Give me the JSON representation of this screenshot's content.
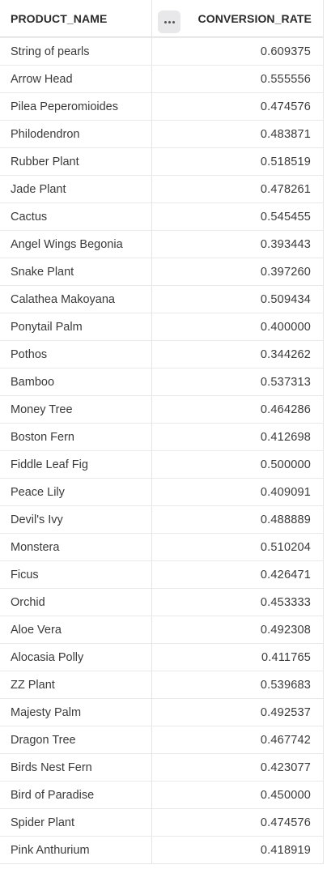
{
  "table": {
    "columns": {
      "product_name": "PRODUCT_NAME",
      "conversion_rate": "CONVERSION_RATE"
    },
    "column_menu_icon": "more-horizontal-icon",
    "rows": [
      {
        "product_name": "String of pearls",
        "conversion_rate": "0.609375"
      },
      {
        "product_name": "Arrow Head",
        "conversion_rate": "0.555556"
      },
      {
        "product_name": "Pilea Peperomioides",
        "conversion_rate": "0.474576"
      },
      {
        "product_name": "Philodendron",
        "conversion_rate": "0.483871"
      },
      {
        "product_name": "Rubber Plant",
        "conversion_rate": "0.518519"
      },
      {
        "product_name": "Jade Plant",
        "conversion_rate": "0.478261"
      },
      {
        "product_name": "Cactus",
        "conversion_rate": "0.545455"
      },
      {
        "product_name": "Angel Wings Begonia",
        "conversion_rate": "0.393443"
      },
      {
        "product_name": "Snake Plant",
        "conversion_rate": "0.397260"
      },
      {
        "product_name": "Calathea Makoyana",
        "conversion_rate": "0.509434"
      },
      {
        "product_name": "Ponytail Palm",
        "conversion_rate": "0.400000"
      },
      {
        "product_name": "Pothos",
        "conversion_rate": "0.344262"
      },
      {
        "product_name": "Bamboo",
        "conversion_rate": "0.537313"
      },
      {
        "product_name": "Money Tree",
        "conversion_rate": "0.464286"
      },
      {
        "product_name": "Boston Fern",
        "conversion_rate": "0.412698"
      },
      {
        "product_name": "Fiddle Leaf Fig",
        "conversion_rate": "0.500000"
      },
      {
        "product_name": "Peace Lily",
        "conversion_rate": "0.409091"
      },
      {
        "product_name": "Devil's Ivy",
        "conversion_rate": "0.488889"
      },
      {
        "product_name": "Monstera",
        "conversion_rate": "0.510204"
      },
      {
        "product_name": "Ficus",
        "conversion_rate": "0.426471"
      },
      {
        "product_name": "Orchid",
        "conversion_rate": "0.453333"
      },
      {
        "product_name": "Aloe Vera",
        "conversion_rate": "0.492308"
      },
      {
        "product_name": "Alocasia Polly",
        "conversion_rate": "0.411765"
      },
      {
        "product_name": "ZZ Plant",
        "conversion_rate": "0.539683"
      },
      {
        "product_name": "Majesty Palm",
        "conversion_rate": "0.492537"
      },
      {
        "product_name": "Dragon Tree",
        "conversion_rate": "0.467742"
      },
      {
        "product_name": "Birds Nest Fern",
        "conversion_rate": "0.423077"
      },
      {
        "product_name": "Bird of Paradise",
        "conversion_rate": "0.450000"
      },
      {
        "product_name": "Spider Plant",
        "conversion_rate": "0.474576"
      },
      {
        "product_name": "Pink Anthurium",
        "conversion_rate": "0.418919"
      }
    ]
  }
}
